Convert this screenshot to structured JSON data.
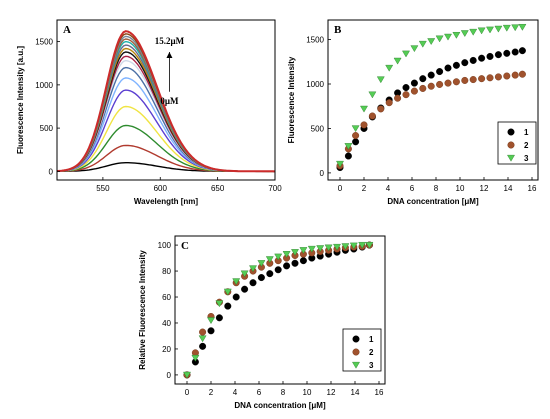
{
  "chart_data": [
    {
      "panel": "A",
      "type": "line",
      "xlabel": "Wavelength [nm]",
      "ylabel": "Fluorescence Intensity [a.u.]",
      "xlim": [
        510,
        700
      ],
      "ylim": [
        -100,
        1750
      ],
      "xticks": [
        550,
        600,
        650,
        700
      ],
      "yticks": [
        0,
        500,
        1000,
        1500
      ],
      "peak_wavelength": 570,
      "annotations": {
        "top": "15.2μM",
        "bottom": "0μM"
      },
      "series": [
        {
          "peak": 100,
          "color": "#000000"
        },
        {
          "peak": 300,
          "color": "#b03a2e"
        },
        {
          "peak": 530,
          "color": "#2e8b2e"
        },
        {
          "peak": 750,
          "color": "#f0e442"
        },
        {
          "peak": 940,
          "color": "#5b3fd1"
        },
        {
          "peak": 1080,
          "color": "#7fb3ff"
        },
        {
          "peak": 1200,
          "color": "#4a6fa5"
        },
        {
          "peak": 1280,
          "color": "#cfd9e8"
        },
        {
          "peak": 1330,
          "color": "#aa2244"
        },
        {
          "peak": 1380,
          "color": "#111111"
        },
        {
          "peak": 1420,
          "color": "#b8860b"
        },
        {
          "peak": 1460,
          "color": "#6b6b8e"
        },
        {
          "peak": 1500,
          "color": "#20b2aa"
        },
        {
          "peak": 1530,
          "color": "#a06040"
        },
        {
          "peak": 1560,
          "color": "#778899"
        },
        {
          "peak": 1590,
          "color": "#8b4513"
        },
        {
          "peak": 1620,
          "color": "#cc2b2b"
        }
      ]
    },
    {
      "panel": "B",
      "type": "scatter",
      "xlabel": "DNA concentration [μM]",
      "ylabel": "Fluorescence Intensity",
      "xlim": [
        -1,
        16.5
      ],
      "ylim": [
        -80,
        1720
      ],
      "xticks": [
        0,
        2,
        4,
        6,
        8,
        10,
        12,
        14,
        16
      ],
      "yticks": [
        0,
        500,
        1000,
        1500
      ],
      "legend": [
        "1",
        "2",
        "3"
      ],
      "legend_position": "right",
      "series": [
        {
          "name": "1",
          "marker": "circle",
          "color": "#000000",
          "x": [
            0,
            0.7,
            1.3,
            2.0,
            2.7,
            3.4,
            4.1,
            4.8,
            5.5,
            6.2,
            6.9,
            7.6,
            8.3,
            9.0,
            9.7,
            10.4,
            11.1,
            11.8,
            12.5,
            13.2,
            13.9,
            14.6,
            15.2
          ],
          "y": [
            60,
            190,
            350,
            500,
            630,
            730,
            820,
            900,
            960,
            1010,
            1060,
            1100,
            1140,
            1180,
            1210,
            1240,
            1265,
            1290,
            1310,
            1330,
            1345,
            1360,
            1375
          ]
        },
        {
          "name": "2",
          "marker": "circle",
          "color": "#a0522d",
          "x": [
            0,
            0.7,
            1.3,
            2.0,
            2.7,
            3.4,
            4.1,
            4.8,
            5.5,
            6.2,
            6.9,
            7.6,
            8.3,
            9.0,
            9.7,
            10.4,
            11.1,
            11.8,
            12.5,
            13.2,
            13.9,
            14.6,
            15.2
          ],
          "y": [
            80,
            270,
            420,
            540,
            640,
            720,
            790,
            840,
            880,
            920,
            950,
            975,
            995,
            1010,
            1025,
            1040,
            1050,
            1060,
            1070,
            1080,
            1090,
            1100,
            1110
          ]
        },
        {
          "name": "3",
          "marker": "triangle-down",
          "color": "#55cc55",
          "x": [
            0,
            0.7,
            1.3,
            2.0,
            2.7,
            3.4,
            4.1,
            4.8,
            5.5,
            6.2,
            6.9,
            7.6,
            8.3,
            9.0,
            9.7,
            10.4,
            11.1,
            11.8,
            12.5,
            13.2,
            13.9,
            14.6,
            15.2
          ],
          "y": [
            100,
            300,
            500,
            720,
            880,
            1050,
            1180,
            1260,
            1340,
            1400,
            1450,
            1480,
            1510,
            1530,
            1550,
            1570,
            1585,
            1600,
            1610,
            1620,
            1630,
            1635,
            1640
          ]
        }
      ]
    },
    {
      "panel": "C",
      "type": "scatter",
      "xlabel": "DNA concentration [μM]",
      "ylabel": "Relative Fluorescence Intensity",
      "xlim": [
        -1,
        16.5
      ],
      "ylim": [
        -7,
        107
      ],
      "xticks": [
        0,
        2,
        4,
        6,
        8,
        10,
        12,
        14,
        16
      ],
      "yticks": [
        0,
        20,
        40,
        60,
        80,
        100
      ],
      "legend": [
        "1",
        "2",
        "3"
      ],
      "legend_position": "bottom-right",
      "series": [
        {
          "name": "1",
          "marker": "circle",
          "color": "#000000",
          "x": [
            0,
            0.7,
            1.3,
            2.0,
            2.7,
            3.4,
            4.1,
            4.8,
            5.5,
            6.2,
            6.9,
            7.6,
            8.3,
            9.0,
            9.7,
            10.4,
            11.1,
            11.8,
            12.5,
            13.2,
            13.9,
            14.6,
            15.2
          ],
          "y": [
            0,
            10,
            22,
            34,
            44,
            53,
            60,
            66,
            71,
            75,
            78,
            81,
            84,
            86,
            88,
            90,
            91.5,
            93,
            94.5,
            96,
            97,
            98.5,
            100
          ]
        },
        {
          "name": "2",
          "marker": "circle",
          "color": "#a0522d",
          "x": [
            0,
            0.7,
            1.3,
            2.0,
            2.7,
            3.4,
            4.1,
            4.8,
            5.5,
            6.2,
            6.9,
            7.6,
            8.3,
            9.0,
            9.7,
            10.4,
            11.1,
            11.8,
            12.5,
            13.2,
            13.9,
            14.6,
            15.2
          ],
          "y": [
            0,
            17,
            33,
            45,
            56,
            64,
            71,
            76,
            80,
            83,
            86,
            88,
            90,
            92,
            93,
            94,
            95,
            96,
            97,
            98,
            98.5,
            99,
            100
          ]
        },
        {
          "name": "3",
          "marker": "triangle-down",
          "color": "#55cc55",
          "x": [
            0,
            0.7,
            1.3,
            2.0,
            2.7,
            3.4,
            4.1,
            4.8,
            5.5,
            6.2,
            6.9,
            7.6,
            8.3,
            9.0,
            9.7,
            10.4,
            11.1,
            11.8,
            12.5,
            13.2,
            13.9,
            14.6,
            15.2
          ],
          "y": [
            0,
            13,
            28,
            42,
            55,
            64,
            72,
            78,
            82,
            86,
            89,
            91,
            93,
            94.5,
            96,
            97,
            97.5,
            98,
            98.5,
            99,
            99.5,
            100,
            100
          ]
        }
      ]
    }
  ]
}
